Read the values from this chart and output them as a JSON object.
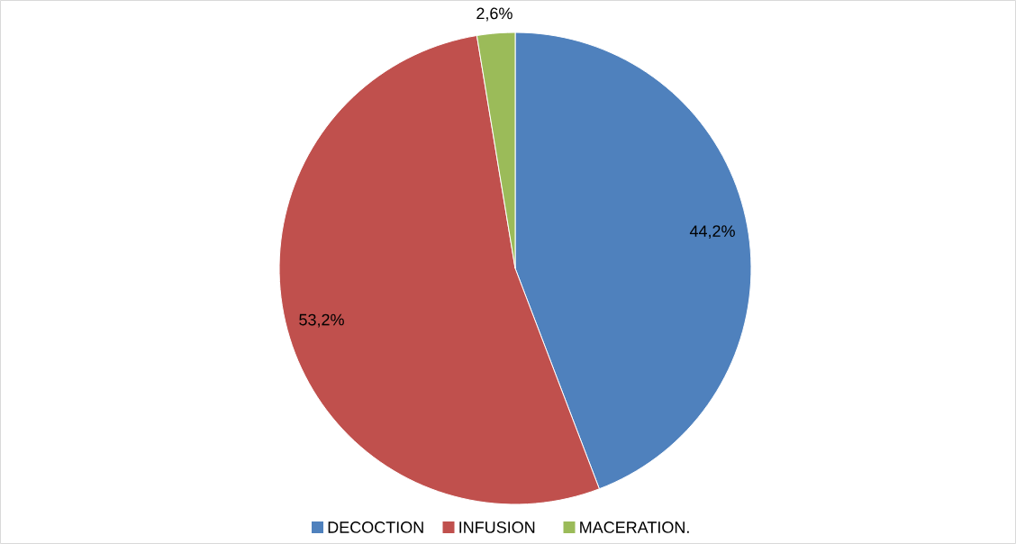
{
  "chart_data": {
    "type": "pie",
    "categories": [
      "DECOCTION",
      "INFUSION",
      "MACERATION."
    ],
    "values": [
      44.2,
      53.2,
      2.6
    ],
    "colors": [
      "#4f81bd",
      "#c0504d",
      "#9bbb59"
    ],
    "value_labels": [
      "44,2%",
      "53,2%",
      "2,6%"
    ],
    "legend": "bottom"
  }
}
